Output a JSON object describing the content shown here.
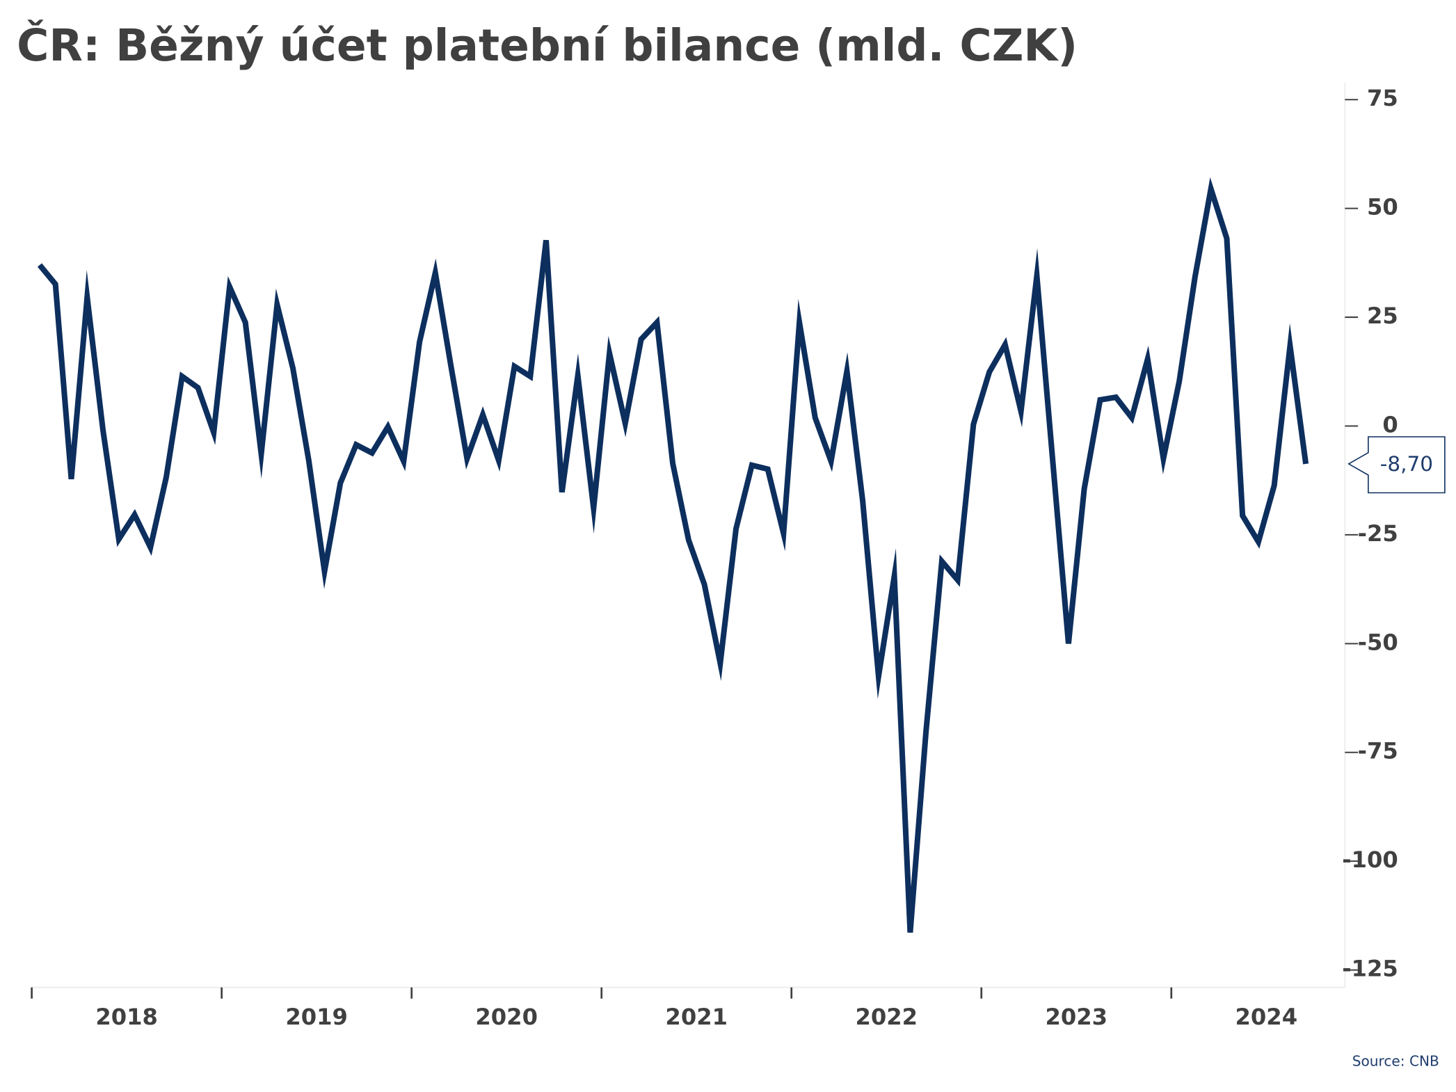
{
  "chart_data": {
    "type": "line",
    "title": "ČR: Běžný účet platební bilance (mld. CZK)",
    "source": "Source: CNB",
    "x_labels": [
      "2018",
      "2019",
      "2020",
      "2021",
      "2022",
      "2023",
      "2024"
    ],
    "series": [
      {
        "name": "Běžný účet",
        "color": "#0d2f5e",
        "values": [
          37,
          32.6,
          -12.2,
          29.6,
          -0.9,
          -26,
          -20.4,
          -27.9,
          -11.8,
          11.4,
          8.8,
          -1.5,
          32,
          23.8,
          -6.4,
          27.9,
          13.3,
          -7.9,
          -33.4,
          -13.1,
          -4.3,
          -6.2,
          -0.2,
          -8.1,
          19.3,
          35.2,
          13.5,
          -7.5,
          2.6,
          -7.9,
          13.7,
          11.4,
          42.7,
          -15.2,
          11.6,
          -18.9,
          16.7,
          0.6,
          19.9,
          23.8,
          -8.6,
          -26.2,
          -36.4,
          -54.5,
          -23.6,
          -9,
          -9.9,
          -24.7,
          23.8,
          1.9,
          -8.1,
          12.6,
          -17.2,
          -57.5,
          -34.5,
          -116.4,
          -70.3,
          -31.1,
          -35.4,
          0.4,
          12.4,
          18.7,
          3.4,
          34.5,
          -7.7,
          -50,
          -14.4,
          6,
          6.6,
          1.9,
          15.4,
          -7.5,
          10.3,
          34.3,
          54.5,
          43.1,
          -20.6,
          -26.6,
          -13.7,
          18.4,
          -8.7
        ]
      }
    ],
    "last_value_label": "-8,70",
    "ylim": [
      -129,
      79
    ],
    "yticks": [
      -125,
      -100,
      -75,
      -50,
      -25,
      0,
      25,
      50,
      75
    ],
    "y_axis_side": "right"
  }
}
